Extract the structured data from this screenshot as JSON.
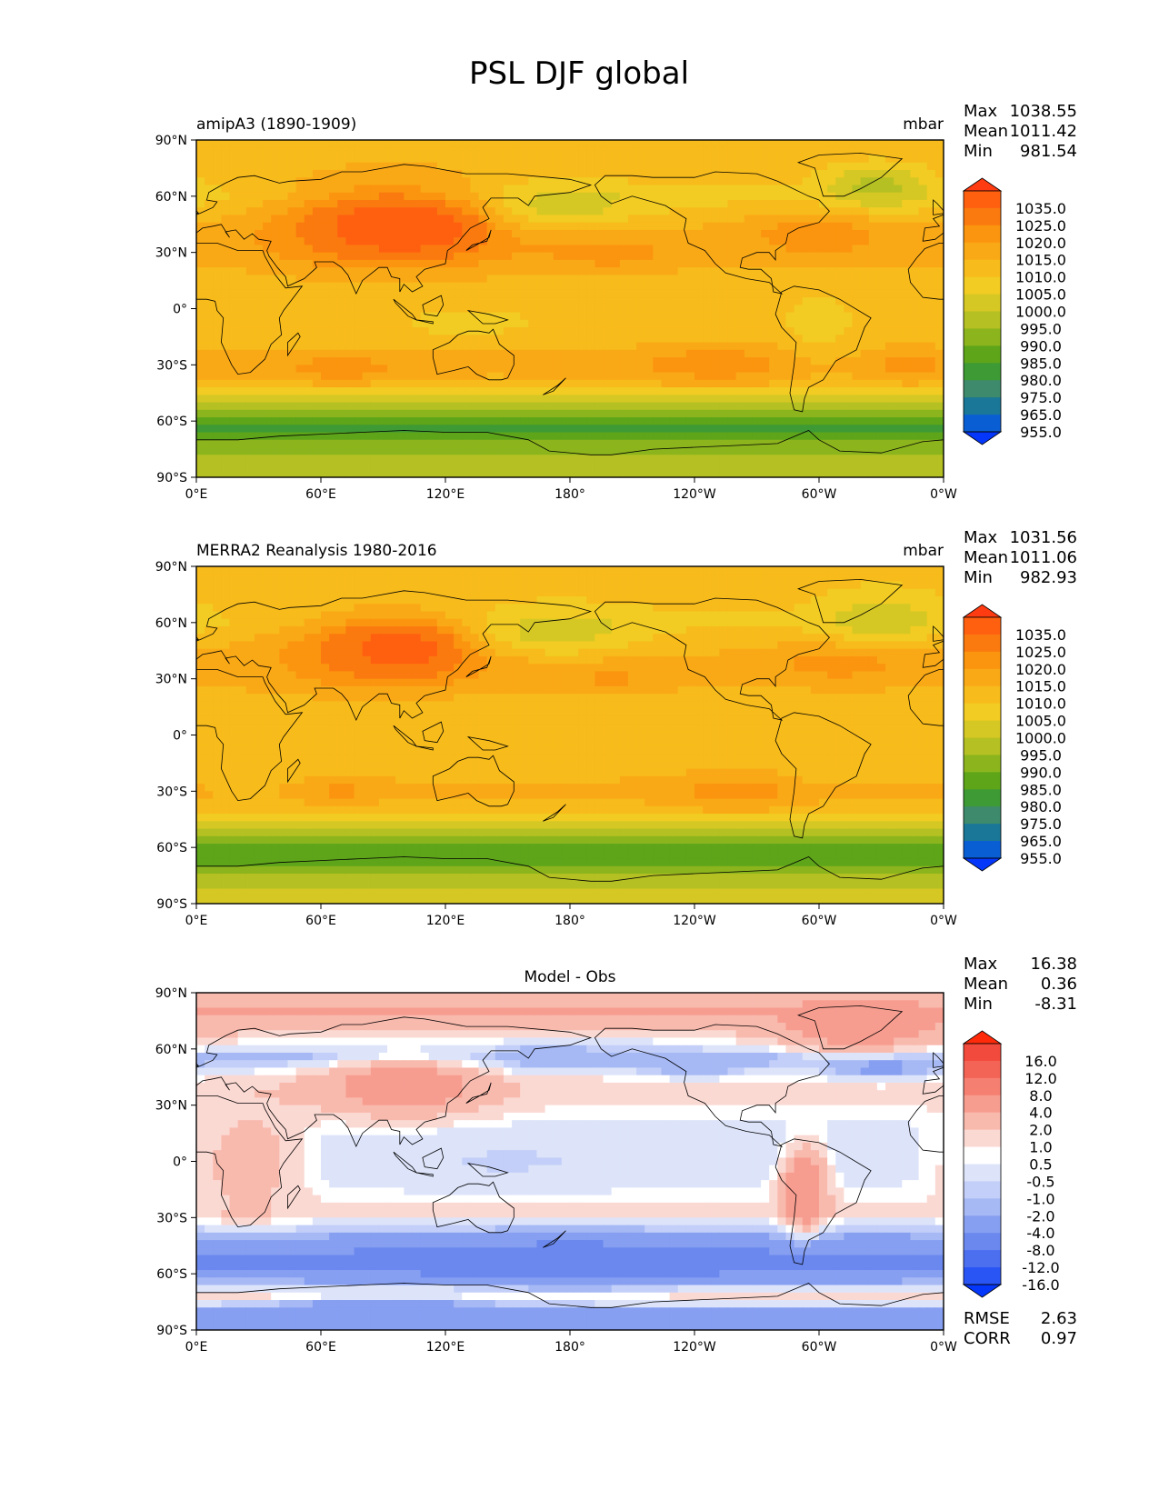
{
  "chart_data": [
    {
      "type": "heatmap",
      "figure_title": "PSL DJF global",
      "left_title": "amipA3 (1890-1909)",
      "center_title": "",
      "units": "mbar",
      "xticks": [
        "0°E",
        "60°E",
        "120°E",
        "180°",
        "120°W",
        "60°W",
        "0°W"
      ],
      "yticks": [
        "90°N",
        "60°N",
        "30°N",
        "0°",
        "30°S",
        "60°S",
        "90°S"
      ],
      "stats": [
        {
          "label": "Max",
          "value": "1038.55"
        },
        {
          "label": "Mean",
          "value": "1011.42"
        },
        {
          "label": "Min",
          "value": "981.54"
        }
      ],
      "colorbar": {
        "labels": [
          "1035.0",
          "1025.0",
          "1020.0",
          "1015.0",
          "1010.0",
          "1005.0",
          "1000.0",
          "995.0",
          "990.0",
          "985.0",
          "980.0",
          "975.0",
          "965.0",
          "955.0"
        ],
        "colors": [
          "#ff3b12",
          "#ff6010",
          "#fb7a0f",
          "#fb950f",
          "#faa916",
          "#f7bb1b",
          "#f2cc22",
          "#d6c824",
          "#b5c022",
          "#8cb51d",
          "#5ea51a",
          "#3e9a34",
          "#3e8a6c",
          "#1a7797",
          "#0a5ed3",
          "#0437fa"
        ]
      },
      "field": {
        "lat_profile": [
          [
            90,
            1012
          ],
          [
            80,
            1013
          ],
          [
            70,
            1012
          ],
          [
            60,
            1008
          ],
          [
            50,
            1012
          ],
          [
            40,
            1016
          ],
          [
            30,
            1017
          ],
          [
            20,
            1014
          ],
          [
            10,
            1012
          ],
          [
            0,
            1011
          ],
          [
            -10,
            1011
          ],
          [
            -20,
            1014
          ],
          [
            -30,
            1018
          ],
          [
            -40,
            1013
          ],
          [
            -50,
            998
          ],
          [
            -60,
            985
          ],
          [
            -65,
            983
          ],
          [
            -70,
            990
          ],
          [
            -80,
            997
          ],
          [
            -90,
            1000
          ]
        ],
        "features": [
          {
            "lon": 95,
            "lat": 45,
            "rx": 55,
            "ry": 22,
            "v": 1034
          },
          {
            "lon": 100,
            "lat": 42,
            "rx": 28,
            "ry": 10,
            "v": 1038
          },
          {
            "lon": 170,
            "lat": 55,
            "rx": 40,
            "ry": 12,
            "v": 1000
          },
          {
            "lon": 328,
            "lat": 65,
            "rx": 25,
            "ry": 12,
            "v": 998
          },
          {
            "lon": 200,
            "lat": 30,
            "rx": 30,
            "ry": 10,
            "v": 1022
          },
          {
            "lon": 300,
            "lat": 40,
            "rx": 35,
            "ry": 12,
            "v": 1023
          },
          {
            "lon": 70,
            "lat": -32,
            "rx": 25,
            "ry": 7,
            "v": 1023
          },
          {
            "lon": 250,
            "lat": -30,
            "rx": 35,
            "ry": 10,
            "v": 1023
          },
          {
            "lon": 345,
            "lat": -30,
            "rx": 15,
            "ry": 8,
            "v": 1023
          },
          {
            "lon": 300,
            "lat": -10,
            "rx": 15,
            "ry": 18,
            "v": 1008
          },
          {
            "lon": 130,
            "lat": -8,
            "rx": 35,
            "ry": 10,
            "v": 1009
          }
        ]
      }
    },
    {
      "type": "heatmap",
      "left_title": "MERRA2 Reanalysis 1980-2016",
      "center_title": "",
      "units": "mbar",
      "xticks": [
        "0°E",
        "60°E",
        "120°E",
        "180°",
        "120°W",
        "60°W",
        "0°W"
      ],
      "yticks": [
        "90°N",
        "60°N",
        "30°N",
        "0°",
        "30°S",
        "60°S",
        "90°S"
      ],
      "stats": [
        {
          "label": "Max",
          "value": "1031.56"
        },
        {
          "label": "Mean",
          "value": "1011.06"
        },
        {
          "label": "Min",
          "value": "982.93"
        }
      ],
      "colorbar": {
        "labels": [
          "1035.0",
          "1025.0",
          "1020.0",
          "1015.0",
          "1010.0",
          "1005.0",
          "1000.0",
          "995.0",
          "990.0",
          "985.0",
          "980.0",
          "975.0",
          "965.0",
          "955.0"
        ],
        "colors": [
          "#ff3b12",
          "#ff6010",
          "#fb7a0f",
          "#fb950f",
          "#faa916",
          "#f7bb1b",
          "#f2cc22",
          "#d6c824",
          "#b5c022",
          "#8cb51d",
          "#5ea51a",
          "#3e9a34",
          "#3e8a6c",
          "#1a7797",
          "#0a5ed3",
          "#0437fa"
        ]
      },
      "field": {
        "lat_profile": [
          [
            90,
            1011
          ],
          [
            80,
            1011
          ],
          [
            70,
            1011
          ],
          [
            60,
            1009
          ],
          [
            50,
            1013
          ],
          [
            40,
            1016
          ],
          [
            30,
            1016
          ],
          [
            20,
            1013
          ],
          [
            10,
            1011
          ],
          [
            0,
            1010
          ],
          [
            -10,
            1010
          ],
          [
            -20,
            1013
          ],
          [
            -30,
            1017
          ],
          [
            -40,
            1012
          ],
          [
            -50,
            998
          ],
          [
            -60,
            988
          ],
          [
            -65,
            986
          ],
          [
            -70,
            992
          ],
          [
            -80,
            998
          ],
          [
            -90,
            1003
          ]
        ],
        "features": [
          {
            "lon": 90,
            "lat": 45,
            "rx": 50,
            "ry": 20,
            "v": 1028
          },
          {
            "lon": 100,
            "lat": 45,
            "rx": 25,
            "ry": 12,
            "v": 1031
          },
          {
            "lon": 170,
            "lat": 55,
            "rx": 40,
            "ry": 12,
            "v": 1001
          },
          {
            "lon": 330,
            "lat": 62,
            "rx": 25,
            "ry": 12,
            "v": 1000
          },
          {
            "lon": 200,
            "lat": 30,
            "rx": 25,
            "ry": 8,
            "v": 1021
          },
          {
            "lon": 310,
            "lat": 38,
            "rx": 35,
            "ry": 10,
            "v": 1022
          },
          {
            "lon": 260,
            "lat": -30,
            "rx": 35,
            "ry": 10,
            "v": 1022
          },
          {
            "lon": 70,
            "lat": -30,
            "rx": 20,
            "ry": 6,
            "v": 1021
          },
          {
            "lon": 25,
            "lat": -15,
            "rx": 18,
            "ry": 18,
            "v": 1010
          },
          {
            "lon": 300,
            "lat": -10,
            "rx": 15,
            "ry": 18,
            "v": 1010
          }
        ]
      }
    },
    {
      "type": "heatmap",
      "left_title": "",
      "center_title": "Model - Obs",
      "units": "",
      "xticks": [
        "0°E",
        "60°E",
        "120°E",
        "180°",
        "120°W",
        "60°W",
        "0°W"
      ],
      "yticks": [
        "90°N",
        "60°N",
        "30°N",
        "0°",
        "30°S",
        "60°S",
        "90°S"
      ],
      "stats": [
        {
          "label": "Max",
          "value": "16.38"
        },
        {
          "label": "Mean",
          "value": "0.36"
        },
        {
          "label": "Min",
          "value": "-8.31"
        }
      ],
      "extra_stats": [
        {
          "label": "RMSE",
          "value": "2.63"
        },
        {
          "label": "CORR",
          "value": "0.97"
        }
      ],
      "colorbar": {
        "labels": [
          "16.0",
          "12.0",
          "8.0",
          "4.0",
          "2.0",
          "1.0",
          "0.5",
          "-0.5",
          "-1.0",
          "-2.0",
          "-4.0",
          "-8.0",
          "-12.0",
          "-16.0"
        ],
        "colors": [
          "#ff2a0a",
          "#f24a3c",
          "#f36456",
          "#f58072",
          "#f79d90",
          "#f9baae",
          "#fbd9d3",
          "#ffffff",
          "#dde4fa",
          "#c3cff8",
          "#a6b9f5",
          "#879ff1",
          "#6a88ee",
          "#4c6ff0",
          "#2a55f5",
          "#0437fa"
        ]
      },
      "field": {
        "lat_profile": [
          [
            90,
            3
          ],
          [
            80,
            4
          ],
          [
            70,
            2
          ],
          [
            62,
            0
          ],
          [
            55,
            -2
          ],
          [
            45,
            1
          ],
          [
            35,
            1.5
          ],
          [
            25,
            0.6
          ],
          [
            15,
            0.2
          ],
          [
            0,
            0.1
          ],
          [
            -10,
            0.3
          ],
          [
            -20,
            0.8
          ],
          [
            -28,
            1.5
          ],
          [
            -38,
            -1.5
          ],
          [
            -45,
            -3.5
          ],
          [
            -55,
            -5
          ],
          [
            -62,
            -3
          ],
          [
            -68,
            0
          ],
          [
            -73,
            1.5
          ],
          [
            -80,
            -3
          ],
          [
            -90,
            -2
          ]
        ],
        "features": [
          {
            "lon": 100,
            "lat": 40,
            "rx": 40,
            "ry": 15,
            "v": 6
          },
          {
            "lon": 25,
            "lat": 0,
            "rx": 25,
            "ry": 30,
            "v": 3
          },
          {
            "lon": 293,
            "lat": -15,
            "rx": 10,
            "ry": 20,
            "v": 8
          },
          {
            "lon": 320,
            "lat": 70,
            "rx": 40,
            "ry": 12,
            "v": 6
          },
          {
            "lon": 170,
            "lat": 55,
            "rx": 25,
            "ry": 6,
            "v": -2
          },
          {
            "lon": 330,
            "lat": 50,
            "rx": 25,
            "ry": 6,
            "v": -3
          },
          {
            "lon": 240,
            "lat": 50,
            "rx": 25,
            "ry": 5,
            "v": -2
          },
          {
            "lon": 180,
            "lat": -55,
            "rx": 60,
            "ry": 10,
            "v": -6
          },
          {
            "lon": 90,
            "lat": -78,
            "rx": 40,
            "ry": 5,
            "v": -4
          },
          {
            "lon": 150,
            "lat": 0,
            "rx": 60,
            "ry": 12,
            "v": -0.6
          },
          {
            "lon": 255,
            "lat": 5,
            "rx": 60,
            "ry": 10,
            "v": 0
          }
        ]
      }
    }
  ]
}
